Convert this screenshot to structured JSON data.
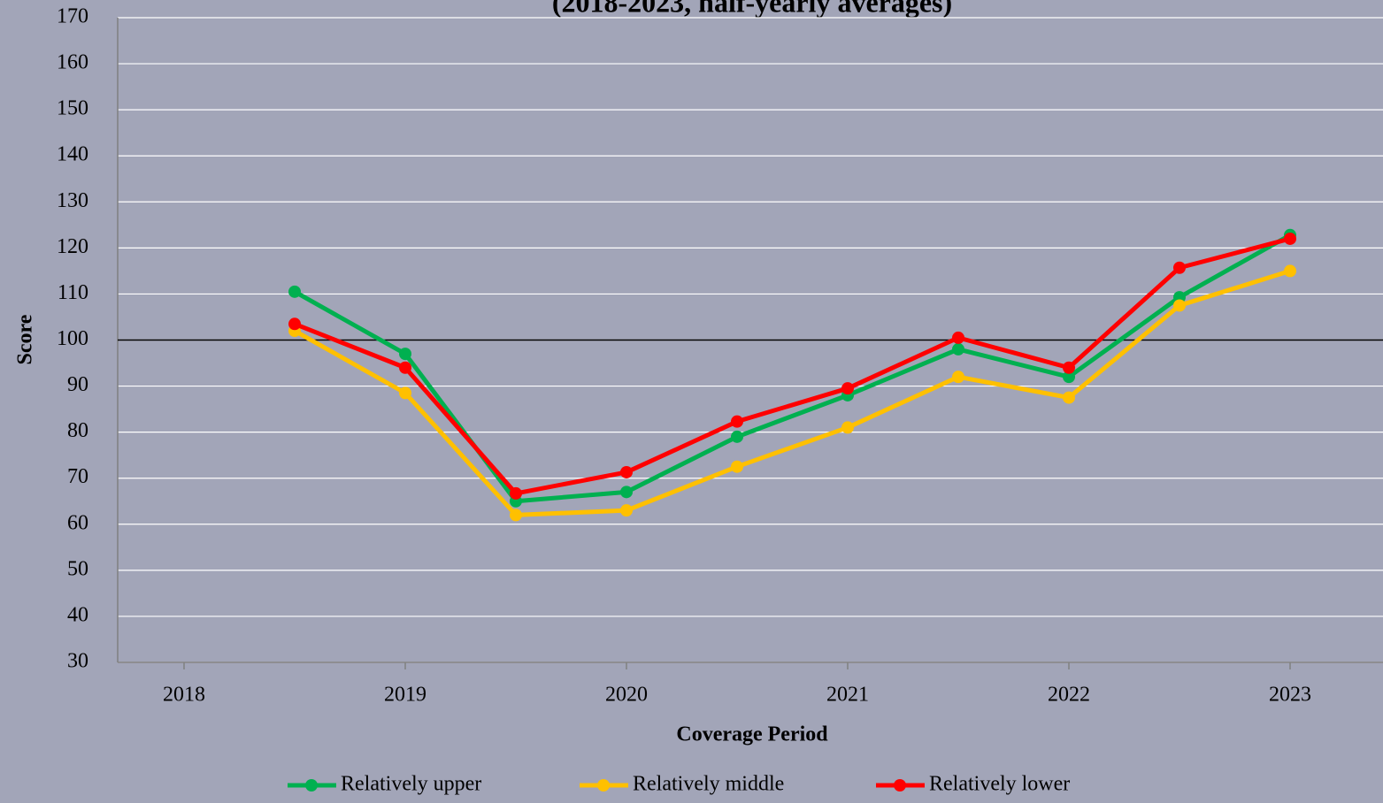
{
  "chart_data": {
    "type": "line",
    "title": "(2018-2023, half-yearly averages)",
    "x_label": "Coverage Period",
    "y_label": "Score",
    "x": [
      2018.5,
      2019,
      2019.5,
      2020,
      2020.5,
      2021,
      2021.5,
      2022,
      2022.5,
      2023
    ],
    "xlim": [
      2017.7,
      2023.42
    ],
    "xticks": [
      2018,
      2019,
      2020,
      2021,
      2022,
      2023
    ],
    "ylim": [
      30,
      170
    ],
    "yticks": [
      30,
      40,
      50,
      60,
      70,
      80,
      90,
      100,
      110,
      120,
      130,
      140,
      150,
      160,
      170
    ],
    "grid": true,
    "reference_line": 100,
    "legend": "bottom",
    "series": [
      {
        "name": "Relatively upper",
        "color": "#00b050",
        "values": [
          110.5,
          97,
          65,
          67,
          79,
          88,
          98,
          92,
          109.3,
          122.8
        ]
      },
      {
        "name": "Relatively middle",
        "color": "#ffc000",
        "values": [
          102,
          88.5,
          62,
          63,
          72.5,
          81,
          92,
          87.5,
          107.5,
          115
        ]
      },
      {
        "name": "Relatively lower",
        "color": "#ff0000",
        "values": [
          103.5,
          94,
          66.7,
          71.3,
          82.3,
          89.5,
          100.5,
          94,
          115.7,
          122
        ]
      }
    ]
  }
}
